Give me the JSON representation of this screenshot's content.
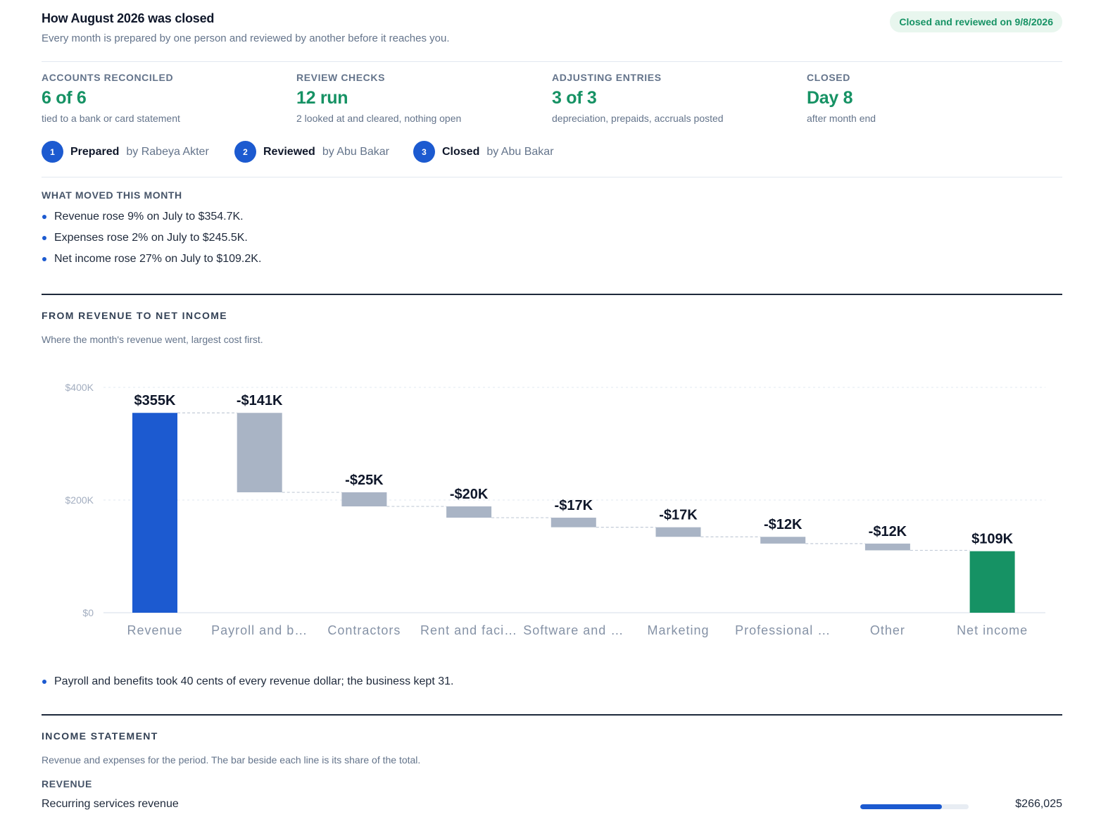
{
  "header": {
    "title": "How August 2026 was closed",
    "subtitle": "Every month is prepared by one person and reviewed by another before it reaches you.",
    "status_badge": "Closed and reviewed on 9/8/2026"
  },
  "stats": [
    {
      "label": "ACCOUNTS RECONCILED",
      "value": "6 of 6",
      "note": "tied to a bank or card statement"
    },
    {
      "label": "REVIEW CHECKS",
      "value": "12 run",
      "note": "2 looked at and cleared, nothing open"
    },
    {
      "label": "ADJUSTING ENTRIES",
      "value": "3 of 3",
      "note": "depreciation, prepaids, accruals posted"
    },
    {
      "label": "CLOSED",
      "value": "Day 8",
      "note": "after month end"
    }
  ],
  "steps": [
    {
      "number": "1",
      "name": "Prepared",
      "by": "by Rabeya Akter"
    },
    {
      "number": "2",
      "name": "Reviewed",
      "by": "by Abu Bakar"
    },
    {
      "number": "3",
      "name": "Closed",
      "by": "by Abu Bakar"
    }
  ],
  "moved": {
    "label": "WHAT MOVED THIS MONTH",
    "items": [
      "Revenue rose 9% on July to $354.7K.",
      "Expenses rose 2% on July to $245.5K.",
      "Net income rose 27% on July to $109.2K."
    ]
  },
  "waterfall": {
    "label": "FROM REVENUE TO NET INCOME",
    "description": "Where the month's revenue went, largest cost first.",
    "insight": "Payroll and benefits took 40 cents of every revenue dollar; the business kept 31."
  },
  "chart_data": {
    "type": "bar",
    "subtype": "waterfall",
    "categories": [
      "Revenue",
      "Payroll and b…",
      "Contractors",
      "Rent and faci…",
      "Software and …",
      "Marketing",
      "Professional …",
      "Other",
      "Net income"
    ],
    "values": [
      354.7,
      -141,
      -25,
      -20,
      -17,
      -17,
      -12,
      -12,
      109.2
    ],
    "value_labels": [
      "$355K",
      "-$141K",
      "-$25K",
      "-$20K",
      "-$17K",
      "-$17K",
      "-$12K",
      "-$12K",
      "$109K"
    ],
    "bar_kinds": [
      "total",
      "delta",
      "delta",
      "delta",
      "delta",
      "delta",
      "delta",
      "delta",
      "total"
    ],
    "units": "thousands of dollars",
    "ylim": [
      0,
      400
    ],
    "yticks": [
      0,
      200,
      400
    ],
    "ytick_labels": [
      "$0",
      "$200K",
      "$400K"
    ],
    "grid": true,
    "colors": {
      "revenue": "#1c5ad0",
      "expense": "#a9b4c5",
      "net": "#169264",
      "grid": "#e2e8f0",
      "connector": "#c3ccd8"
    }
  },
  "income_statement": {
    "label": "INCOME STATEMENT",
    "description": "Revenue and expenses for the period. The bar beside each line is its share of the total.",
    "revenue_label": "REVENUE",
    "rows": [
      {
        "name": "Recurring services revenue",
        "amount": "$266,025",
        "share": 0.75
      }
    ]
  },
  "colors": {
    "accent": "#1c5ad0",
    "positive": "#169264",
    "badge_bg": "#e8f6ee"
  }
}
